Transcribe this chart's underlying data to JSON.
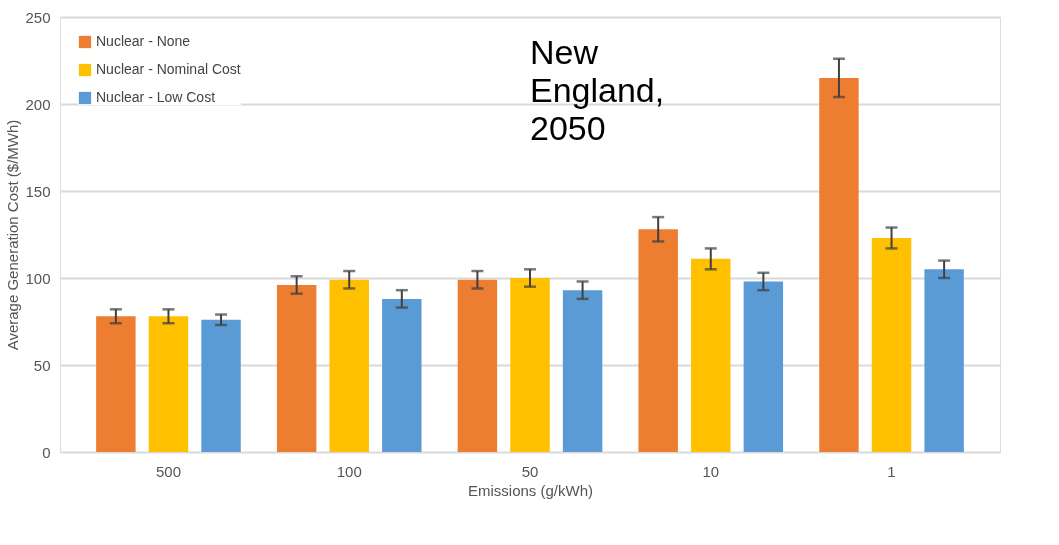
{
  "chart_data": {
    "type": "bar",
    "xlabel": "Emissions (g/kWh)",
    "ylabel": "Average Generation  Cost ($/MWh)",
    "annotations": [
      "New England, 2050"
    ],
    "categories": [
      "500",
      "100",
      "50",
      "10",
      "1"
    ],
    "series": [
      {
        "name": "Nuclear - None",
        "color": "#ed7d31",
        "values": [
          78,
          96,
          99,
          128,
          215
        ],
        "errors": [
          4,
          5,
          5,
          7,
          11
        ]
      },
      {
        "name": "Nuclear - Nominal Cost",
        "color": "#ffc000",
        "values": [
          78,
          99,
          100,
          111,
          123
        ],
        "errors": [
          4,
          5,
          5,
          6,
          6
        ]
      },
      {
        "name": "Nuclear - Low Cost",
        "color": "#5b9bd5",
        "values": [
          76,
          88,
          93,
          98,
          105
        ],
        "errors": [
          3,
          5,
          5,
          5,
          5
        ]
      }
    ],
    "ylim": [
      0,
      250
    ],
    "yticks": [
      0,
      50,
      100,
      150,
      200,
      250
    ],
    "grid": "y",
    "legend": "top left"
  }
}
